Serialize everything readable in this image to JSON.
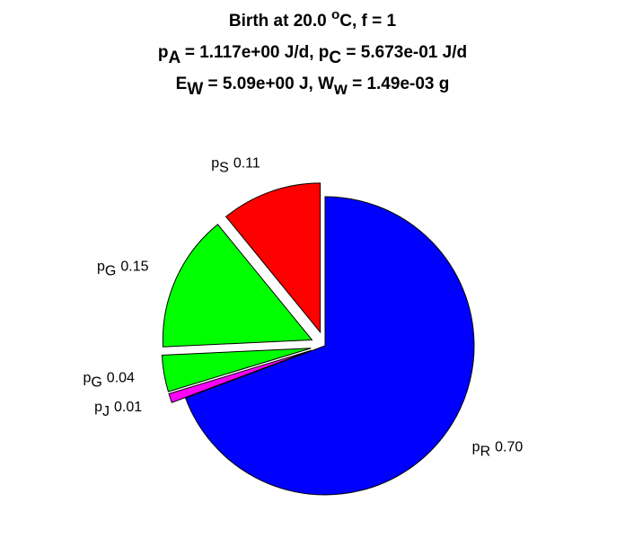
{
  "chart_data": {
    "type": "pie",
    "title": [
      [
        {
          "text": "Birth at 20.0 "
        },
        {
          "text": "o",
          "sup": true
        },
        {
          "text": "C, f = 1"
        }
      ],
      [
        {
          "text": "p"
        },
        {
          "text": "A",
          "sub": true
        },
        {
          "text": " = 1.117e+00 J/d, p"
        },
        {
          "text": "C",
          "sub": true
        },
        {
          "text": " = 5.673e-01 J/d"
        }
      ],
      [
        {
          "text": "E"
        },
        {
          "text": "W",
          "sub": true
        },
        {
          "text": " = 5.09e+00 J, W"
        },
        {
          "text": "w",
          "sub": true
        },
        {
          "text": " = 1.49e-03 g"
        }
      ]
    ],
    "categories": [
      [
        {
          "text": "p"
        },
        {
          "text": "R",
          "sub": true
        }
      ],
      [
        {
          "text": "p"
        },
        {
          "text": "J",
          "sub": true
        }
      ],
      [
        {
          "text": "p"
        },
        {
          "text": "G",
          "sub": true
        }
      ],
      [
        {
          "text": "p"
        },
        {
          "text": "G",
          "sub": true
        }
      ],
      [
        {
          "text": "p"
        },
        {
          "text": "S",
          "sub": true
        }
      ]
    ],
    "values": [
      0.7,
      0.01,
      0.04,
      0.15,
      0.11
    ],
    "value_labels": [
      "0.70",
      "0.01",
      "0.04",
      "0.15",
      "0.11"
    ],
    "colors": [
      "#0000ff",
      "#ff00ff",
      "#00ff00",
      "#00ff00",
      "#ff0000"
    ],
    "explode": [
      false,
      true,
      true,
      true,
      true
    ]
  }
}
